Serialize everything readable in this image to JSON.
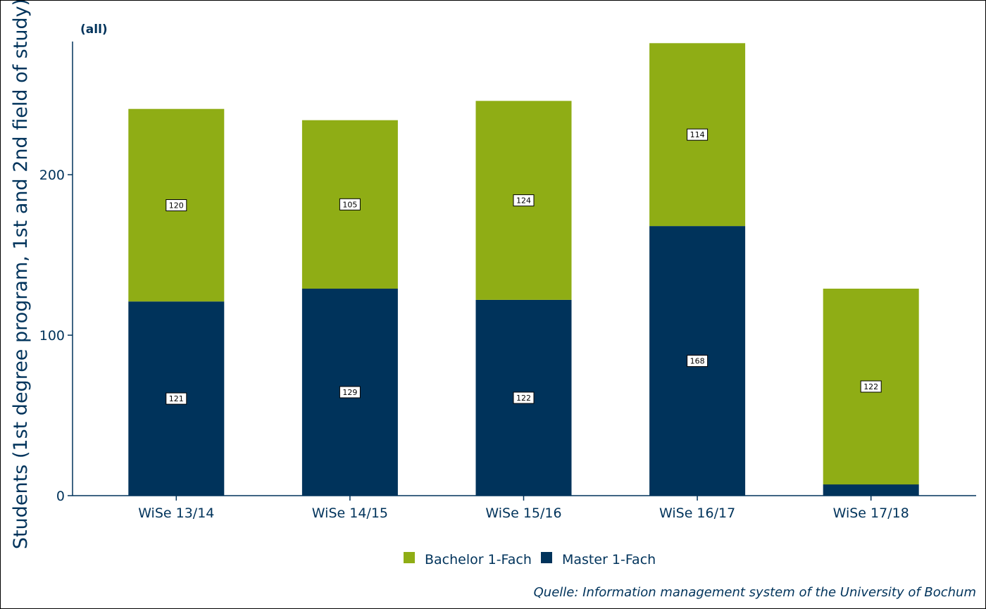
{
  "chart_data": {
    "type": "bar",
    "stacked": true,
    "subtitle": "(all)",
    "ylabel": "Students (1st degree program, 1st and 2nd field of study)",
    "xlabel": "",
    "categories": [
      "WiSe 13/14",
      "WiSe 14/15",
      "WiSe 15/16",
      "WiSe 16/17",
      "WiSe 17/18"
    ],
    "ylim": [
      0,
      283
    ],
    "yticks": [
      0,
      100,
      200
    ],
    "grid": false,
    "legend_position": "bottom",
    "series": [
      {
        "name": "Master 1-Fach",
        "color": "#00335b",
        "values": [
          121,
          129,
          122,
          168,
          7
        ],
        "labels": [
          "121",
          "129",
          "122",
          "168",
          ""
        ]
      },
      {
        "name": "Bachelor 1-Fach",
        "color": "#8fad15",
        "values": [
          120,
          105,
          124,
          114,
          122
        ],
        "labels": [
          "120",
          "105",
          "124",
          "114",
          "122"
        ]
      }
    ],
    "legend_entries": [
      {
        "name": "Bachelor 1-Fach",
        "color": "#8fad15"
      },
      {
        "name": "Master 1-Fach",
        "color": "#00335b"
      }
    ],
    "source": "Quelle: Information management system of the University of Bochum"
  }
}
